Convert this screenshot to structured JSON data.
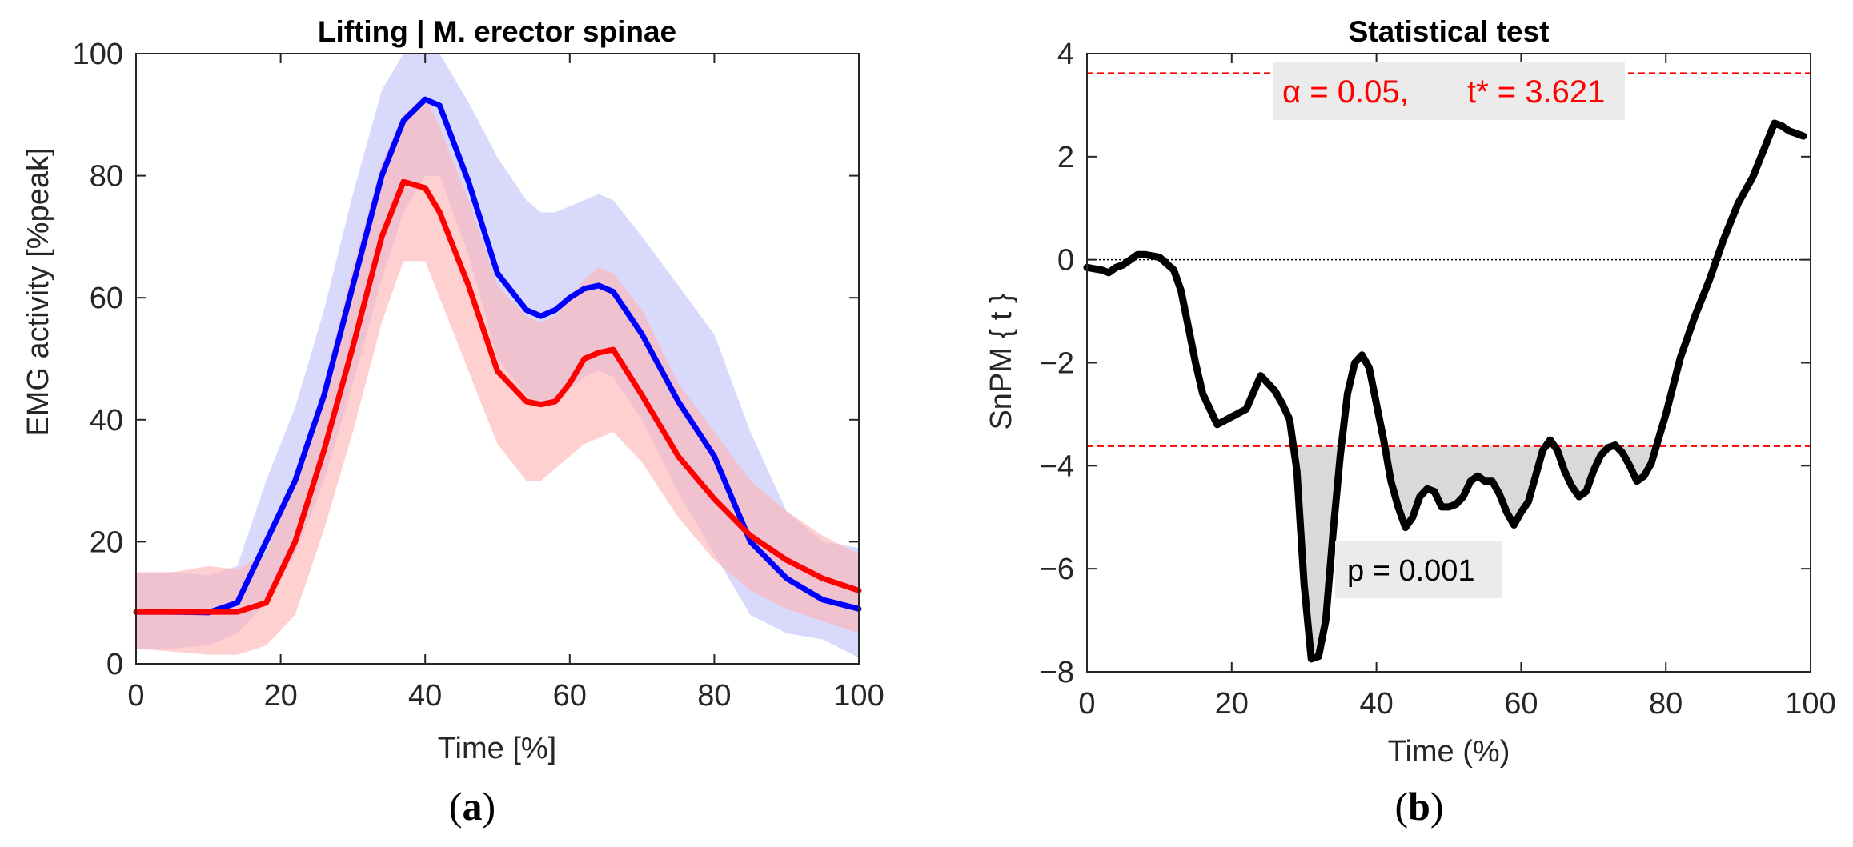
{
  "chart_data": [
    {
      "type": "line",
      "panel_label": "a",
      "title": "Lifting | M. erector spinae",
      "xlabel": "Time [%]",
      "ylabel": "EMG activity [%peak]",
      "xlim": [
        0,
        100
      ],
      "ylim": [
        0,
        100
      ],
      "xticks": [
        "0",
        "20",
        "40",
        "60",
        "80",
        "100"
      ],
      "yticks": [
        "0",
        "20",
        "40",
        "60",
        "80",
        "100"
      ],
      "grid": false,
      "colors": {
        "blue": "#0000ff",
        "red": "#ff0000",
        "blue_band": "#bfc0fa",
        "red_band": "#ffb0b0"
      },
      "x": [
        0,
        5,
        10,
        14,
        18,
        22,
        26,
        30,
        34,
        37,
        40,
        42,
        46,
        50,
        54,
        56,
        58,
        60,
        62,
        64,
        66,
        70,
        75,
        80,
        85,
        90,
        95,
        100
      ],
      "series": [
        {
          "color": "blue",
          "mean": [
            8.5,
            8.5,
            8.4,
            10,
            20,
            30,
            44,
            62,
            80,
            89,
            92.5,
            91.5,
            79,
            64,
            58,
            57,
            58,
            60,
            61.5,
            62,
            61,
            54,
            43,
            34,
            20,
            14,
            10.5,
            9
          ],
          "upper": [
            15,
            15,
            14.5,
            16,
            30,
            42,
            58,
            77,
            94,
            100,
            100,
            100,
            92,
            83,
            76,
            74,
            74,
            75,
            76,
            77,
            76,
            70,
            62,
            54,
            38,
            25,
            20,
            19
          ],
          "lower": [
            2.5,
            2.5,
            3,
            5,
            10,
            18,
            30,
            46,
            63,
            74,
            80,
            80,
            67,
            50,
            44,
            42,
            43,
            45,
            47,
            48,
            47,
            40,
            28,
            18,
            8,
            5,
            4,
            1
          ]
        },
        {
          "color": "red",
          "mean": [
            8.5,
            8.5,
            8.5,
            8.5,
            10,
            20,
            35,
            52,
            70,
            79,
            78,
            74,
            62,
            48,
            43,
            42.5,
            43,
            46,
            50,
            51,
            51.5,
            44,
            34,
            27,
            21,
            17,
            14,
            12
          ],
          "upper": [
            15,
            15,
            16,
            15.5,
            18,
            30,
            46,
            65,
            82,
            90,
            93,
            88,
            76,
            62,
            57,
            56,
            57,
            60,
            63,
            65,
            64,
            58,
            46,
            38,
            30,
            25,
            21,
            18
          ],
          "lower": [
            2.5,
            2,
            1.5,
            1.5,
            3,
            8,
            22,
            38,
            56,
            66,
            66,
            60,
            48,
            36,
            30,
            30,
            32,
            34,
            36,
            37,
            38,
            33,
            24,
            17,
            12,
            9,
            7,
            5
          ]
        }
      ]
    },
    {
      "type": "line",
      "panel_label": "b",
      "title": "Statistical test",
      "xlabel": "Time (%)",
      "ylabel": "SnPM { t }",
      "xlim": [
        0,
        100
      ],
      "ylim": [
        -8,
        4
      ],
      "xticks": [
        "0",
        "20",
        "40",
        "60",
        "80",
        "100"
      ],
      "yticks": [
        "4",
        "2",
        "0",
        "−2",
        "−4",
        "−6",
        "−8"
      ],
      "grid": false,
      "threshold": 3.621,
      "alpha_text": "α = 0.05,",
      "tstar_text": "t* = 3.621",
      "p_text": "p = 0.001",
      "colors": {
        "curve": "#000000",
        "threshold": "#ff0000",
        "cluster_fill": "#d9d9d9"
      },
      "x": [
        0,
        2,
        3,
        4,
        5,
        6,
        7,
        8,
        10,
        12,
        13,
        14,
        15,
        16,
        18,
        20,
        22,
        24,
        26,
        27,
        28,
        29,
        30,
        31,
        32,
        33,
        34,
        35,
        36,
        37,
        38,
        39,
        40,
        41,
        42,
        43,
        44,
        45,
        46,
        47,
        48,
        49,
        50,
        51,
        52,
        53,
        54,
        55,
        56,
        57,
        58,
        59,
        60,
        61,
        62,
        63,
        64,
        65,
        66,
        67,
        68,
        69,
        70,
        71,
        72,
        73,
        74,
        75,
        76,
        77,
        78,
        80,
        82,
        84,
        86,
        88,
        90,
        92,
        94,
        95,
        96,
        97,
        98,
        99
      ],
      "y": [
        -0.15,
        -0.2,
        -0.25,
        -0.15,
        -0.1,
        0.0,
        0.1,
        0.1,
        0.05,
        -0.2,
        -0.6,
        -1.3,
        -2.0,
        -2.6,
        -3.2,
        -3.05,
        -2.9,
        -2.25,
        -2.55,
        -2.8,
        -3.1,
        -4.1,
        -6.3,
        -7.75,
        -7.7,
        -7.0,
        -5.3,
        -3.8,
        -2.6,
        -2.0,
        -1.85,
        -2.1,
        -2.8,
        -3.5,
        -4.3,
        -4.8,
        -5.2,
        -5.0,
        -4.6,
        -4.45,
        -4.5,
        -4.8,
        -4.8,
        -4.75,
        -4.6,
        -4.3,
        -4.2,
        -4.3,
        -4.3,
        -4.55,
        -4.9,
        -5.15,
        -4.9,
        -4.7,
        -4.2,
        -3.7,
        -3.5,
        -3.7,
        -4.1,
        -4.4,
        -4.6,
        -4.5,
        -4.1,
        -3.8,
        -3.65,
        -3.6,
        -3.75,
        -4.0,
        -4.3,
        -4.2,
        -3.95,
        -3.0,
        -1.9,
        -1.1,
        -0.4,
        0.4,
        1.1,
        1.6,
        2.3,
        2.65,
        2.6,
        2.5,
        2.45,
        2.4
      ]
    }
  ]
}
